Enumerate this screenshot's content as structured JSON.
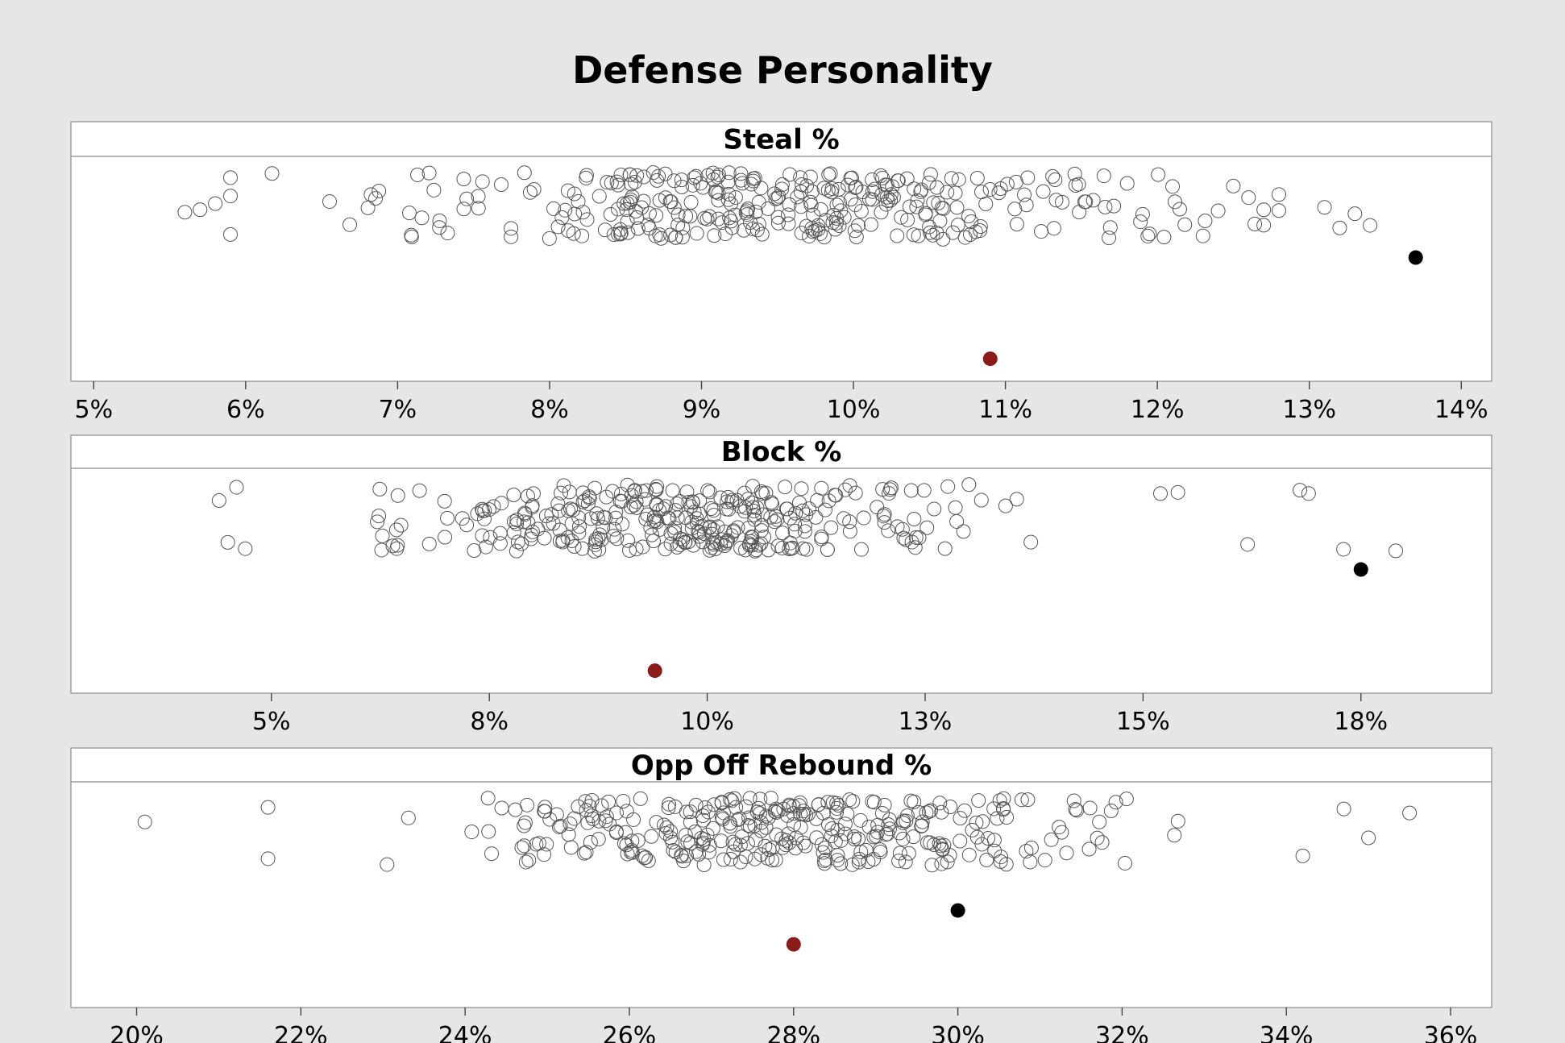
{
  "chart_data": {
    "type": "scatter",
    "title": "Defense Personality",
    "grid": false,
    "legend": "none",
    "colors": {
      "background": "#e6e6e6",
      "panel": "#ffffff",
      "hollow_marker": "#555555",
      "highlight_black": "#000000",
      "highlight_red": "#8b1a1a"
    },
    "panels": [
      {
        "label": "Steal %",
        "xlim": [
          4.85,
          14.2
        ],
        "tick_values": [
          5,
          6,
          7,
          8,
          9,
          10,
          11,
          12,
          13,
          14
        ],
        "tick_labels": [
          "5%",
          "6%",
          "7%",
          "8%",
          "9%",
          "10%",
          "11%",
          "12%",
          "13%",
          "14%"
        ],
        "cloud_range": [
          5.6,
          13.4
        ],
        "cloud_count": 330,
        "outliers_low": [
          5.6,
          5.7,
          5.8,
          5.9,
          5.9,
          5.9
        ],
        "outliers_high": [
          12.1,
          12.3,
          12.4,
          12.5,
          12.6,
          12.7,
          12.7,
          12.8,
          12.8,
          13.1,
          13.2,
          13.3,
          13.4
        ],
        "highlight_black": 13.7,
        "highlight_red": 10.9
      },
      {
        "label": "Block %",
        "xlim": [
          2.7,
          19.0
        ],
        "tick_values": [
          5,
          7.5,
          10,
          12.5,
          15,
          17.5
        ],
        "tick_labels": [
          "5%",
          "8%",
          "10%",
          "13%",
          "15%",
          "18%"
        ],
        "cloud_range": [
          4.4,
          15.0
        ],
        "cloud_count": 330,
        "outliers_low": [
          4.4,
          4.5,
          4.6,
          4.7
        ],
        "outliers_high": [
          15.2,
          15.4,
          16.2,
          16.8,
          16.9,
          17.3,
          17.9
        ],
        "highlight_black": 17.5,
        "highlight_red": 9.4
      },
      {
        "label": "Opp Off Rebound %",
        "xlim": [
          19.2,
          36.5
        ],
        "tick_values": [
          20,
          22,
          24,
          26,
          28,
          30,
          32,
          34,
          36
        ],
        "tick_labels": [
          "20%",
          "22%",
          "24%",
          "26%",
          "28%",
          "30%",
          "32%",
          "34%",
          "36%"
        ],
        "cloud_range": [
          21.5,
          34.2
        ],
        "cloud_count": 330,
        "outliers_low": [
          20.1,
          21.6,
          21.6
        ],
        "outliers_high": [
          34.2,
          34.7,
          35.0,
          35.5
        ],
        "highlight_black": 30.0,
        "highlight_red": 28.0
      }
    ]
  }
}
